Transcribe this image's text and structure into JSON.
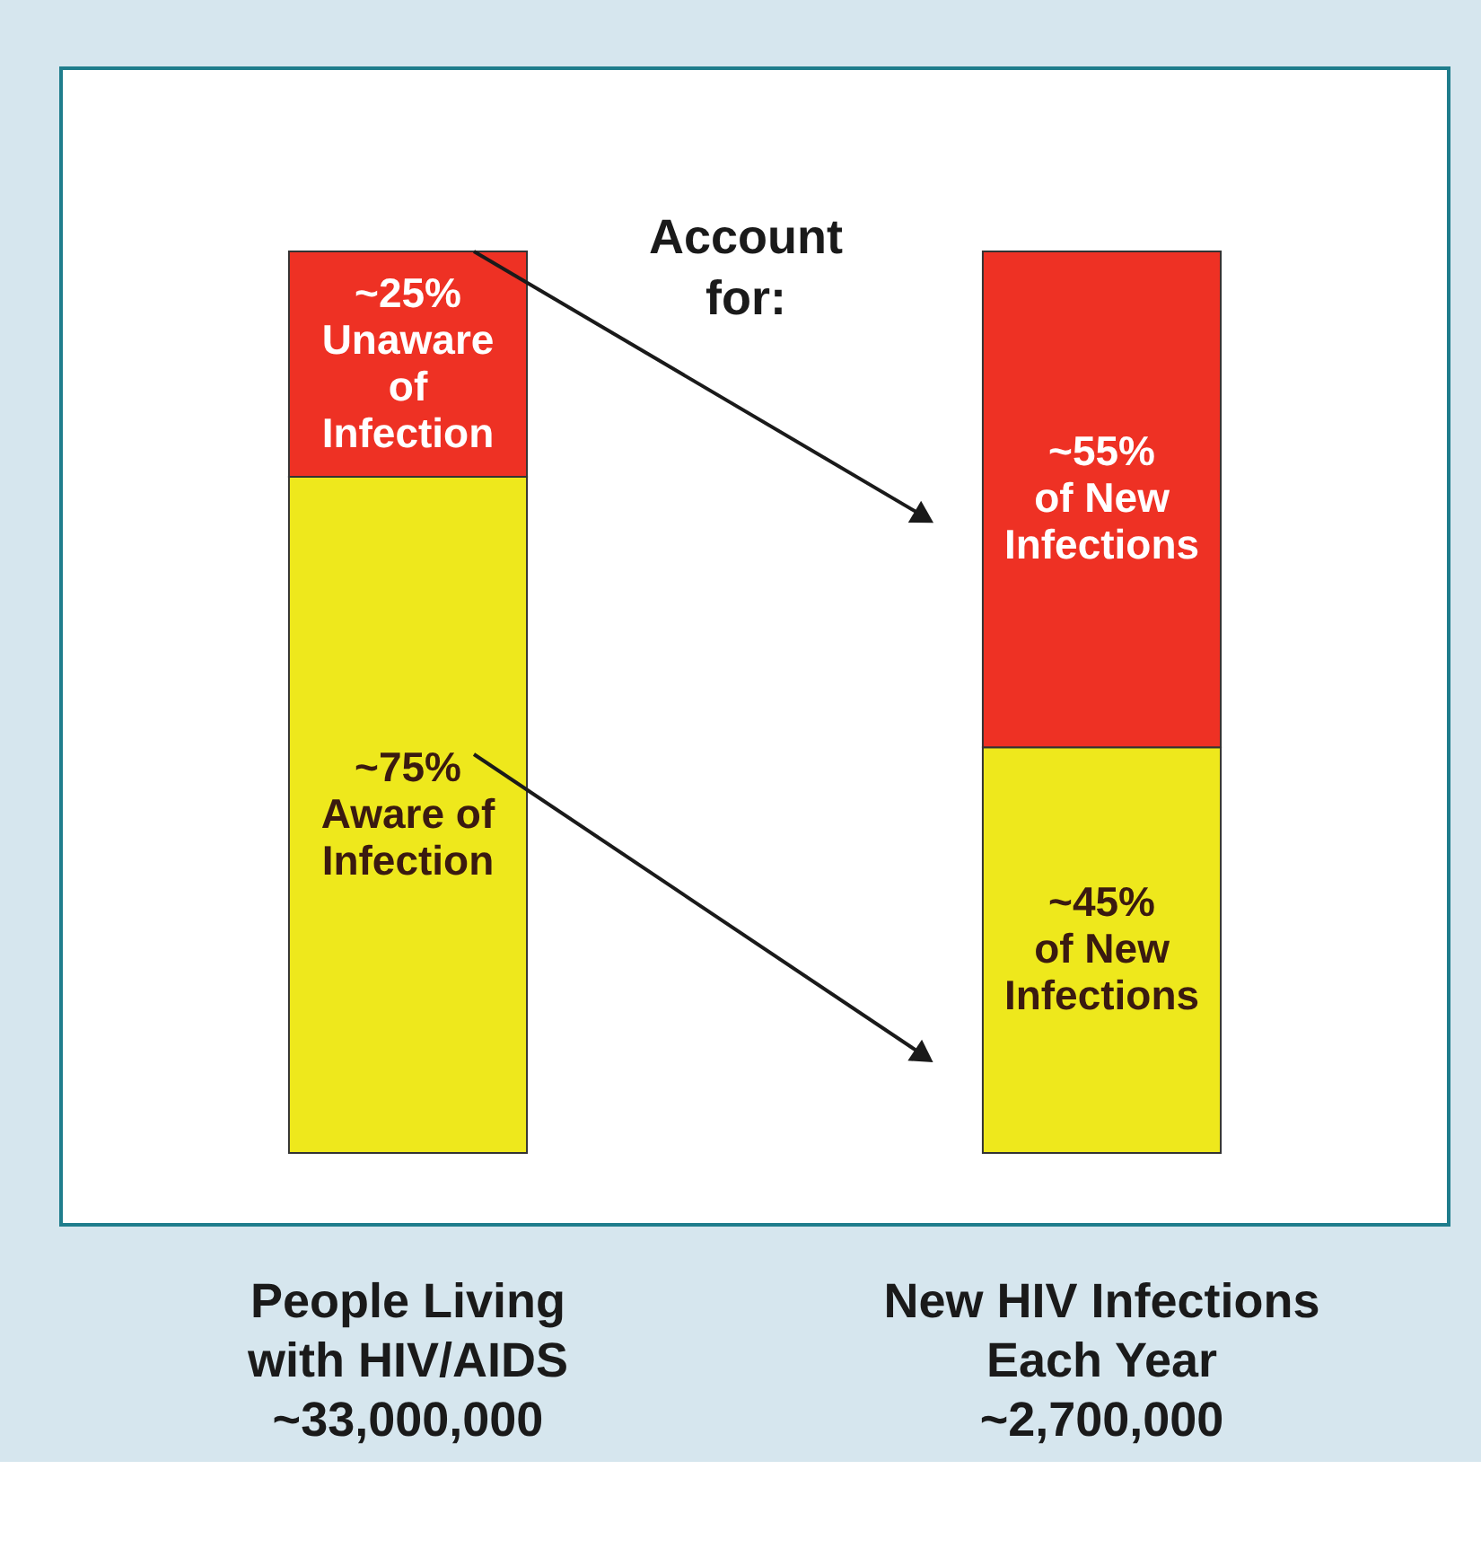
{
  "chart_data": {
    "type": "bar",
    "stacked": true,
    "categories": [
      "People Living\nwith HIV/AIDS\n~33,000,000",
      "New HIV Infections\nEach Year\n~2,700,000"
    ],
    "series": [
      {
        "color": "#eee81c",
        "values": [
          75,
          45
        ],
        "value_labels": [
          "~75%\nAware of\nInfection",
          "~45%\nof New\nInfections"
        ]
      },
      {
        "color": "#ee3124",
        "values": [
          25,
          55
        ],
        "value_labels": [
          "~25%\nUnaware\nof\nInfection",
          "~55%\nof New\nInfections"
        ]
      }
    ],
    "annotations": [
      "Account\nfor:"
    ],
    "tick_labels": "x",
    "grid": false
  }
}
